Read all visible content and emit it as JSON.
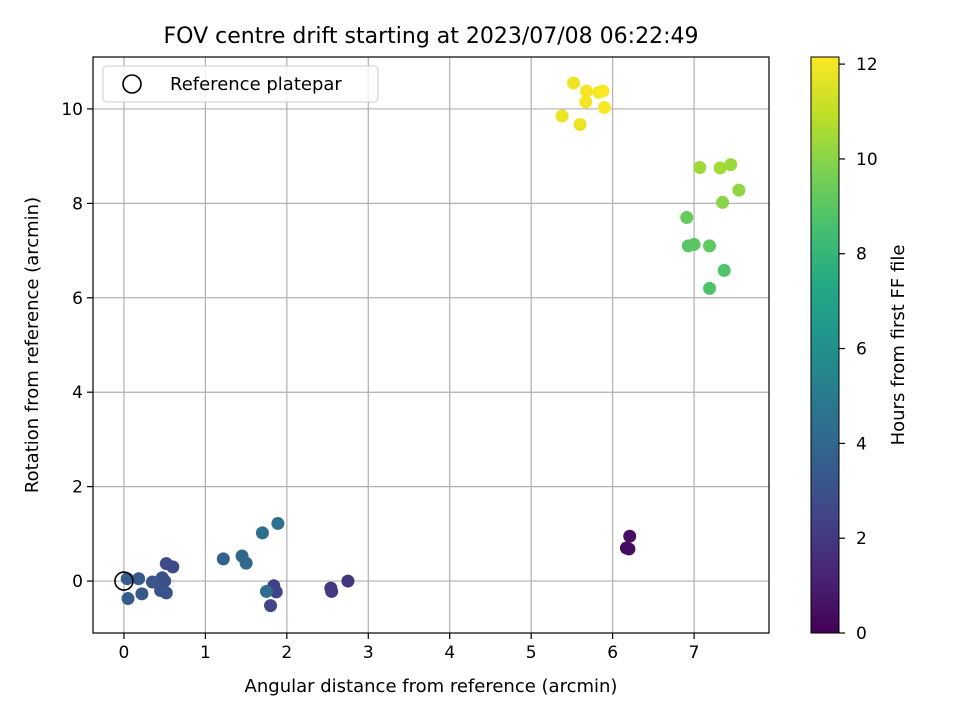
{
  "chart_data": {
    "type": "scatter",
    "title": "FOV centre drift starting at 2023/07/08 06:22:49",
    "xlabel": "Angular distance from reference (arcmin)",
    "ylabel": "Rotation from reference (arcmin)",
    "xlim": [
      -0.38,
      7.92
    ],
    "ylim": [
      -1.1,
      11.1
    ],
    "xticks": [
      0,
      1,
      2,
      3,
      4,
      5,
      6,
      7
    ],
    "yticks": [
      0,
      2,
      4,
      6,
      8,
      10
    ],
    "grid": true,
    "legend": {
      "placement": "top-left",
      "entries": [
        "Reference platepar"
      ]
    },
    "reference_point": {
      "x": 0,
      "y": 0
    },
    "colorbar": {
      "label": "Hours from first FF file",
      "range": [
        0,
        12.15
      ],
      "ticks": [
        0,
        2,
        4,
        6,
        8,
        10,
        12
      ],
      "colormap": "viridis"
    },
    "points": [
      {
        "x": 6.17,
        "y": 0.7,
        "c": 0.3
      },
      {
        "x": 6.2,
        "y": 0.68,
        "c": 0.4
      },
      {
        "x": 6.21,
        "y": 0.95,
        "c": 0.5
      },
      {
        "x": 2.75,
        "y": 0.0,
        "c": 1.9
      },
      {
        "x": 2.54,
        "y": -0.15,
        "c": 2.0
      },
      {
        "x": 2.55,
        "y": -0.22,
        "c": 2.1
      },
      {
        "x": 1.84,
        "y": -0.1,
        "c": 2.3
      },
      {
        "x": 1.87,
        "y": -0.23,
        "c": 2.4
      },
      {
        "x": 1.8,
        "y": -0.52,
        "c": 2.5
      },
      {
        "x": 0.6,
        "y": 0.3,
        "c": 2.7
      },
      {
        "x": 0.52,
        "y": 0.37,
        "c": 2.8
      },
      {
        "x": 0.5,
        "y": 0.0,
        "c": 2.9
      },
      {
        "x": 0.47,
        "y": 0.07,
        "c": 3.0
      },
      {
        "x": 0.45,
        "y": -0.2,
        "c": 3.0
      },
      {
        "x": 0.52,
        "y": -0.25,
        "c": 3.1
      },
      {
        "x": 0.35,
        "y": -0.02,
        "c": 3.2
      },
      {
        "x": 0.22,
        "y": -0.27,
        "c": 3.3
      },
      {
        "x": 0.18,
        "y": 0.05,
        "c": 3.4
      },
      {
        "x": 0.04,
        "y": 0.05,
        "c": 3.5
      },
      {
        "x": 0.05,
        "y": -0.37,
        "c": 3.5
      },
      {
        "x": 1.22,
        "y": 0.47,
        "c": 3.8
      },
      {
        "x": 1.45,
        "y": 0.53,
        "c": 4.0
      },
      {
        "x": 1.5,
        "y": 0.38,
        "c": 4.1
      },
      {
        "x": 1.75,
        "y": -0.22,
        "c": 4.3
      },
      {
        "x": 1.7,
        "y": 1.02,
        "c": 4.4
      },
      {
        "x": 1.89,
        "y": 1.22,
        "c": 4.5
      },
      {
        "x": 7.19,
        "y": 6.2,
        "c": 8.7
      },
      {
        "x": 7.37,
        "y": 6.58,
        "c": 8.8
      },
      {
        "x": 6.93,
        "y": 7.1,
        "c": 8.9
      },
      {
        "x": 7.0,
        "y": 7.13,
        "c": 9.0
      },
      {
        "x": 7.19,
        "y": 7.1,
        "c": 9.1
      },
      {
        "x": 6.91,
        "y": 7.7,
        "c": 9.3
      },
      {
        "x": 7.35,
        "y": 8.02,
        "c": 10.0
      },
      {
        "x": 7.55,
        "y": 8.28,
        "c": 10.1
      },
      {
        "x": 7.07,
        "y": 8.76,
        "c": 10.4
      },
      {
        "x": 7.32,
        "y": 8.75,
        "c": 10.5
      },
      {
        "x": 7.45,
        "y": 8.82,
        "c": 10.3
      },
      {
        "x": 5.38,
        "y": 9.85,
        "c": 11.8
      },
      {
        "x": 5.6,
        "y": 9.67,
        "c": 11.8
      },
      {
        "x": 5.52,
        "y": 10.55,
        "c": 11.9
      },
      {
        "x": 5.68,
        "y": 10.38,
        "c": 12.0
      },
      {
        "x": 5.67,
        "y": 10.15,
        "c": 12.0
      },
      {
        "x": 5.83,
        "y": 10.35,
        "c": 12.0
      },
      {
        "x": 5.88,
        "y": 10.38,
        "c": 12.1
      },
      {
        "x": 5.9,
        "y": 10.03,
        "c": 12.1
      }
    ]
  }
}
